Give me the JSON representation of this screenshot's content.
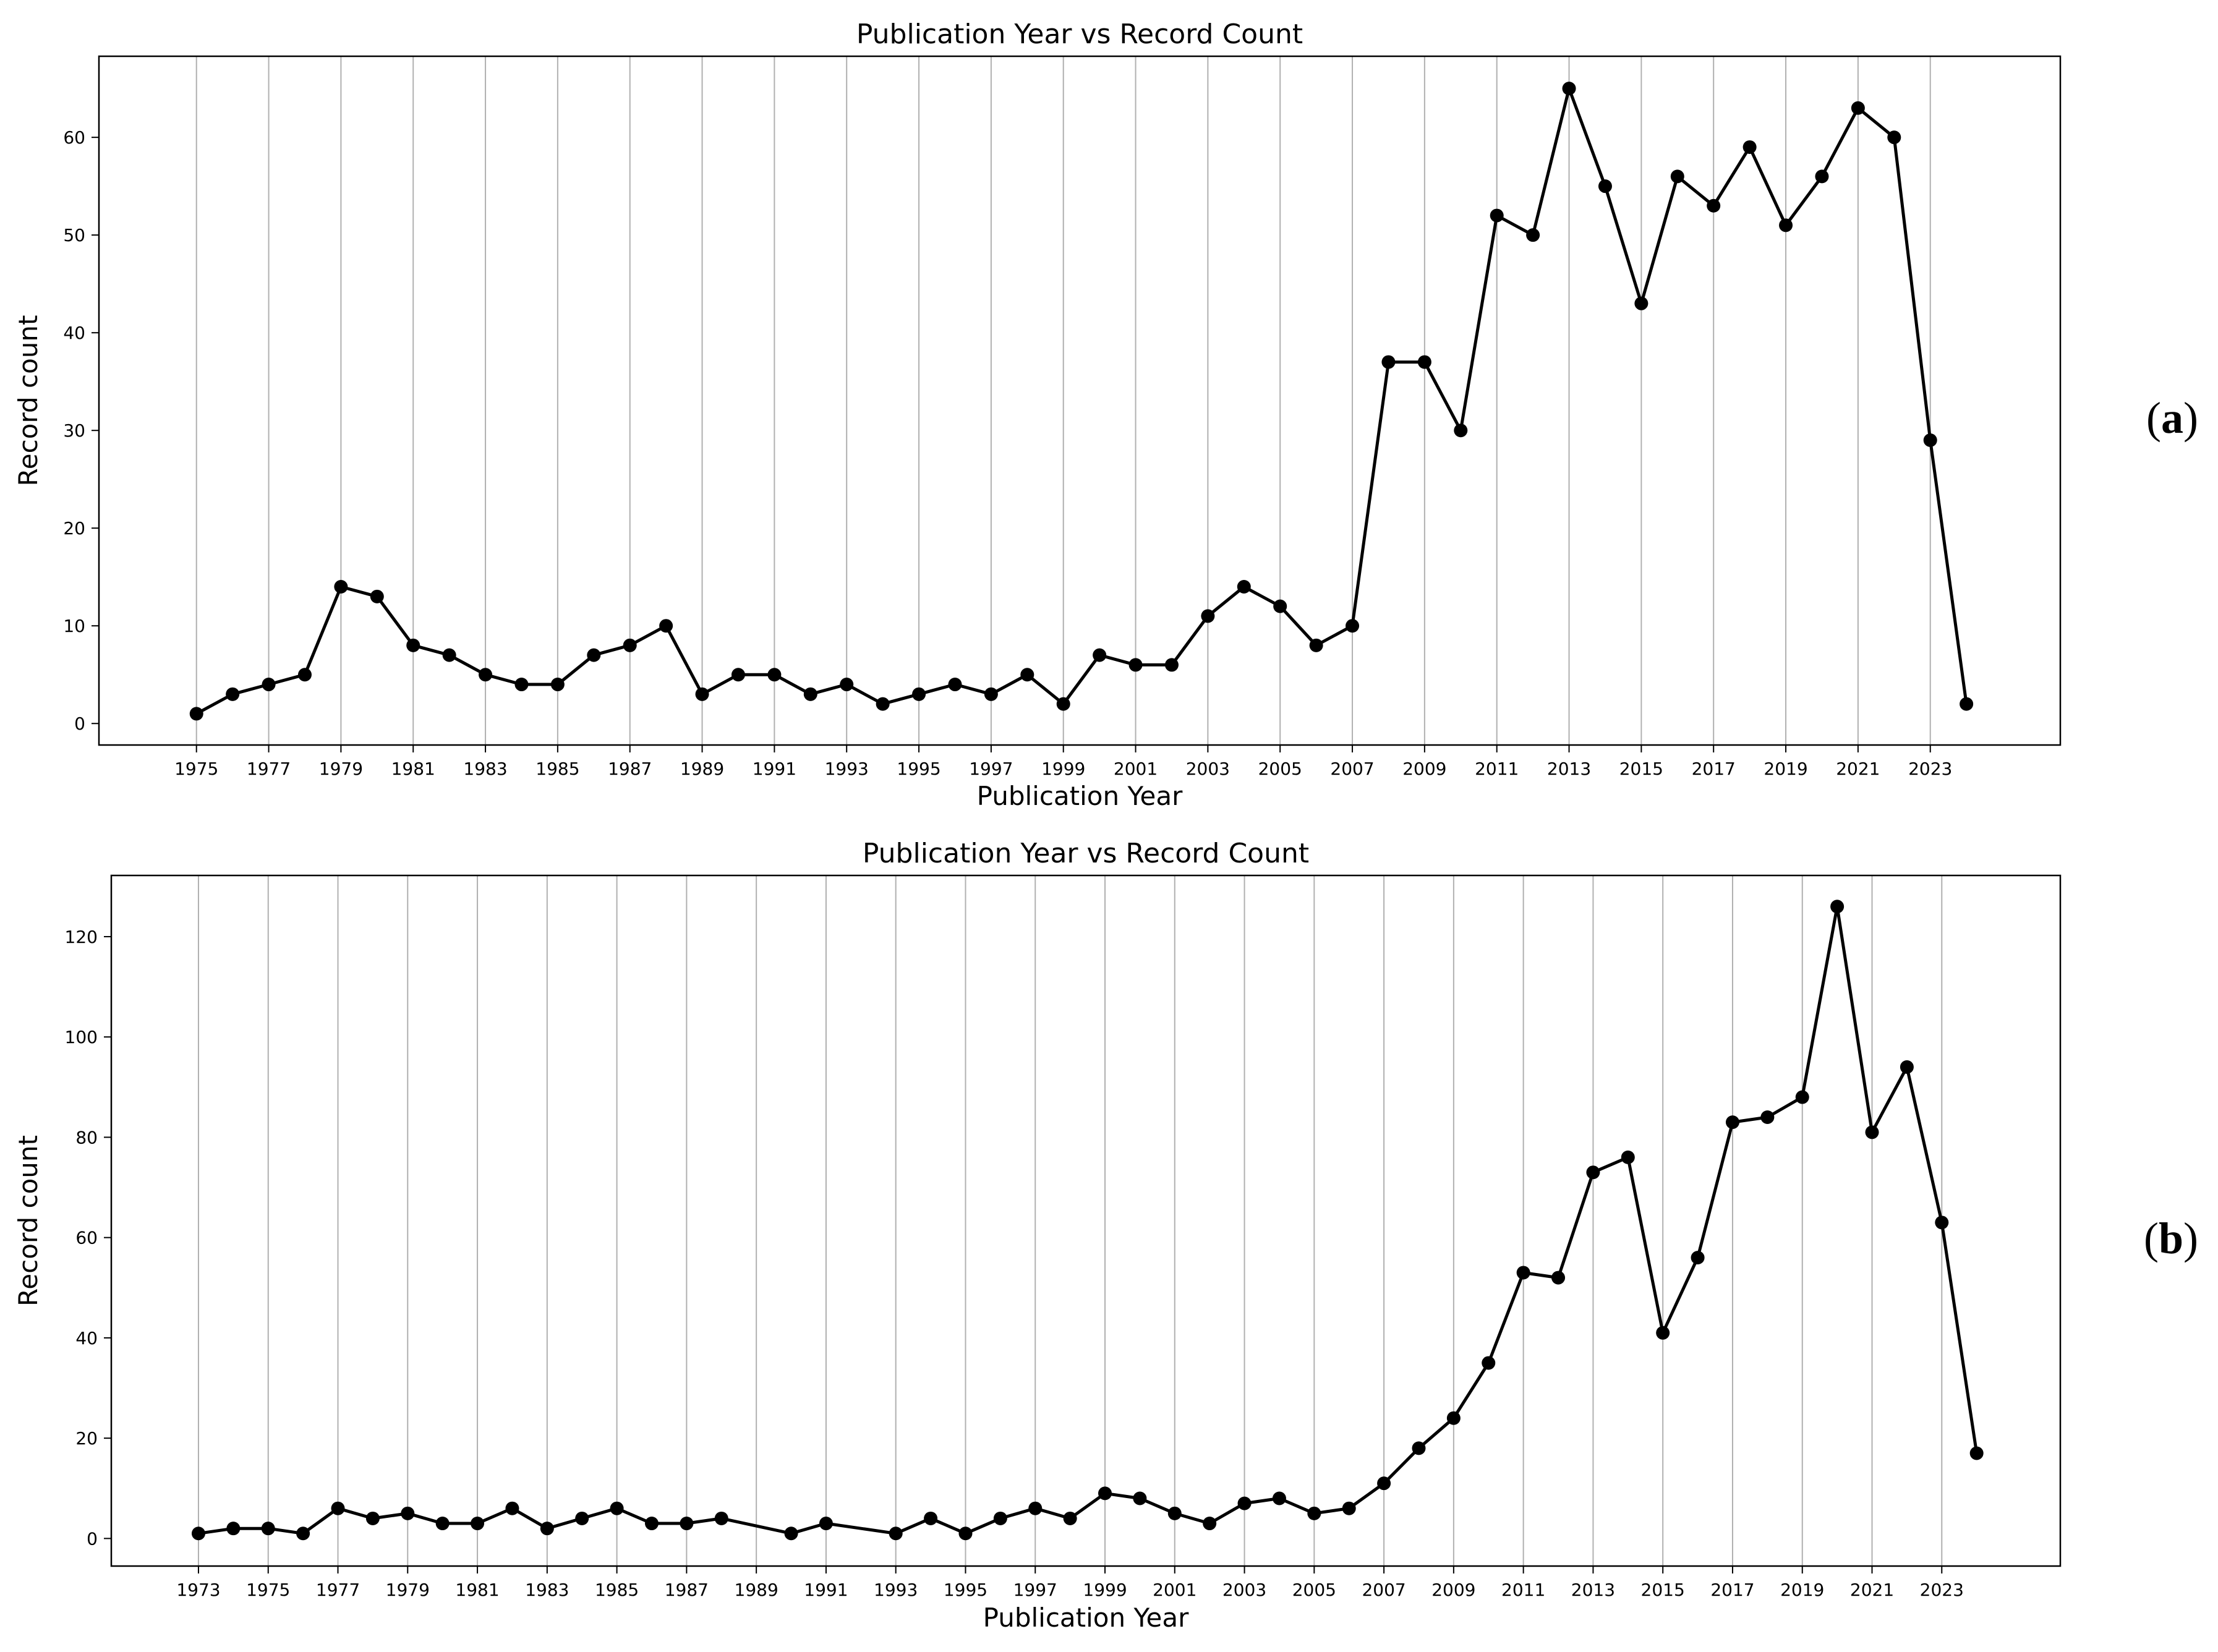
{
  "chart_data": [
    {
      "panel_label": "a",
      "type": "line",
      "title": "Publication Year vs Record Count",
      "xlabel": "Publication Year",
      "ylabel": "Record count",
      "grid": "vertical",
      "xlim": [
        1972.3,
        2026.6
      ],
      "ylim": [
        -2.2,
        68.3
      ],
      "xticks": [
        1975,
        1977,
        1979,
        1981,
        1983,
        1985,
        1987,
        1989,
        1991,
        1993,
        1995,
        1997,
        1999,
        2001,
        2003,
        2005,
        2007,
        2009,
        2011,
        2013,
        2015,
        2017,
        2019,
        2021,
        2023
      ],
      "yticks": [
        0,
        10,
        20,
        30,
        40,
        50,
        60
      ],
      "series": [
        {
          "color": "#000000",
          "marker": "circle",
          "x": [
            1975,
            1976,
            1977,
            1978,
            1979,
            1980,
            1981,
            1982,
            1983,
            1984,
            1985,
            1986,
            1987,
            1988,
            1989,
            1990,
            1991,
            1992,
            1993,
            1994,
            1995,
            1996,
            1997,
            1998,
            1999,
            2000,
            2001,
            2002,
            2003,
            2004,
            2005,
            2006,
            2007,
            2008,
            2009,
            2010,
            2011,
            2012,
            2013,
            2014,
            2015,
            2016,
            2017,
            2018,
            2019,
            2020,
            2021,
            2022,
            2023,
            2024
          ],
          "y": [
            1,
            3,
            4,
            5,
            14,
            13,
            8,
            7,
            5,
            4,
            4,
            7,
            8,
            10,
            3,
            5,
            5,
            3,
            4,
            2,
            3,
            4,
            3,
            5,
            2,
            7,
            6,
            6,
            11,
            14,
            12,
            8,
            10,
            37,
            37,
            30,
            52,
            50,
            65,
            55,
            43,
            56,
            53,
            59,
            51,
            56,
            63,
            60,
            29,
            2
          ]
        }
      ]
    },
    {
      "panel_label": "b",
      "type": "line",
      "title": "Publication Year vs Record Count",
      "xlabel": "Publication Year",
      "ylabel": "Record count",
      "grid": "vertical",
      "xlim": [
        1970.5,
        2026.4
      ],
      "ylim": [
        -5.5,
        132.2
      ],
      "xticks": [
        1973,
        1975,
        1977,
        1979,
        1981,
        1983,
        1985,
        1987,
        1989,
        1991,
        1993,
        1995,
        1997,
        1999,
        2001,
        2003,
        2005,
        2007,
        2009,
        2011,
        2013,
        2015,
        2017,
        2019,
        2021,
        2023
      ],
      "yticks": [
        0,
        20,
        40,
        60,
        80,
        100,
        120
      ],
      "series": [
        {
          "color": "#000000",
          "marker": "circle",
          "x": [
            1973,
            1974,
            1975,
            1976,
            1977,
            1978,
            1979,
            1980,
            1981,
            1982,
            1983,
            1984,
            1985,
            1986,
            1987,
            1988,
            1990,
            1991,
            1993,
            1994,
            1995,
            1996,
            1997,
            1998,
            1999,
            2000,
            2001,
            2002,
            2003,
            2004,
            2005,
            2006,
            2007,
            2008,
            2009,
            2010,
            2011,
            2012,
            2013,
            2014,
            2015,
            2016,
            2017,
            2018,
            2019,
            2020,
            2021,
            2022,
            2023,
            2024
          ],
          "y": [
            1,
            2,
            2,
            1,
            6,
            4,
            5,
            3,
            3,
            6,
            2,
            4,
            6,
            3,
            3,
            4,
            1,
            3,
            1,
            4,
            1,
            4,
            6,
            4,
            9,
            8,
            5,
            3,
            7,
            8,
            5,
            6,
            11,
            18,
            24,
            35,
            53,
            52,
            73,
            76,
            41,
            56,
            83,
            84,
            88,
            126,
            81,
            94,
            63,
            17
          ]
        }
      ]
    }
  ]
}
